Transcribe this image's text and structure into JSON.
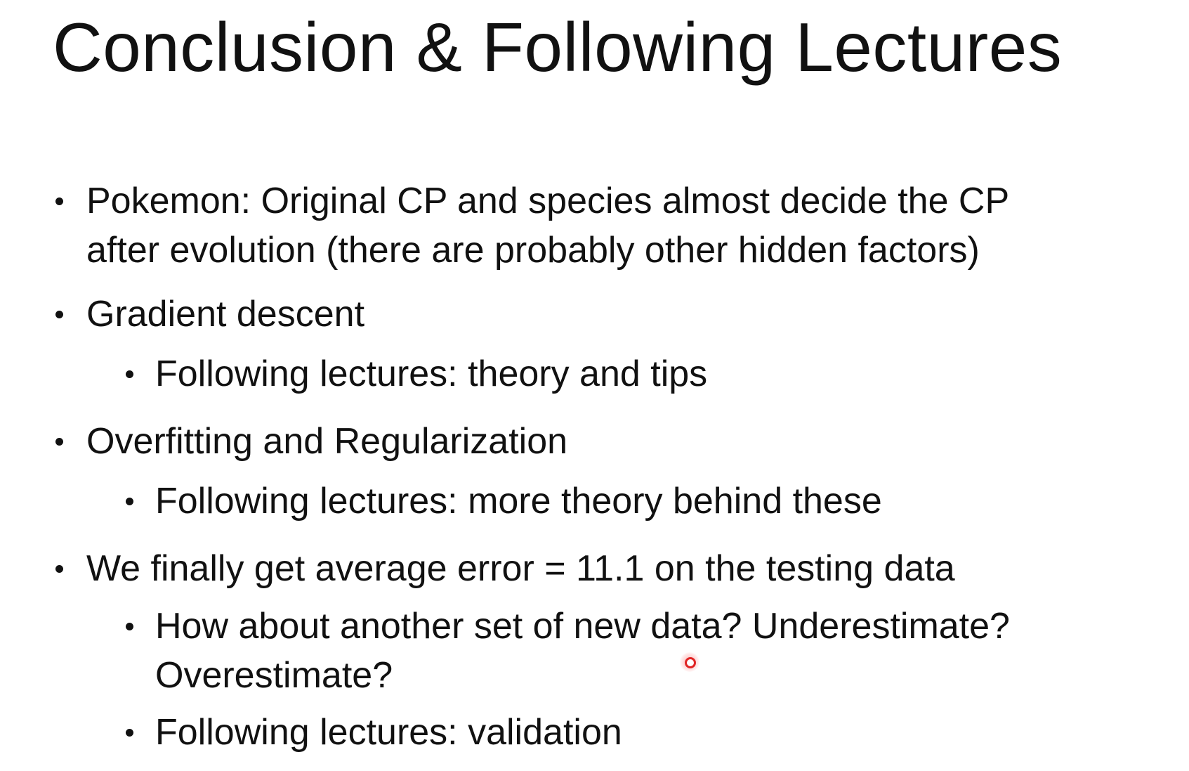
{
  "slide": {
    "title": "Conclusion & Following Lectures",
    "bullets": [
      {
        "text_line1": "Pokemon: Original CP and species almost decide the CP",
        "text_line2": "after evolution (there are probably other hidden factors)"
      },
      {
        "text": "Gradient descent"
      },
      {
        "text": "Following lectures: theory and tips"
      },
      {
        "text": "Overfitting and Regularization"
      },
      {
        "text": "Following lectures: more theory behind these"
      },
      {
        "text": "We finally get average error = 11.1 on the testing data"
      },
      {
        "text_line1": "How about another set of new data? Underestimate?",
        "text_line2": "Overestimate?"
      },
      {
        "text": "Following lectures: validation"
      }
    ]
  }
}
